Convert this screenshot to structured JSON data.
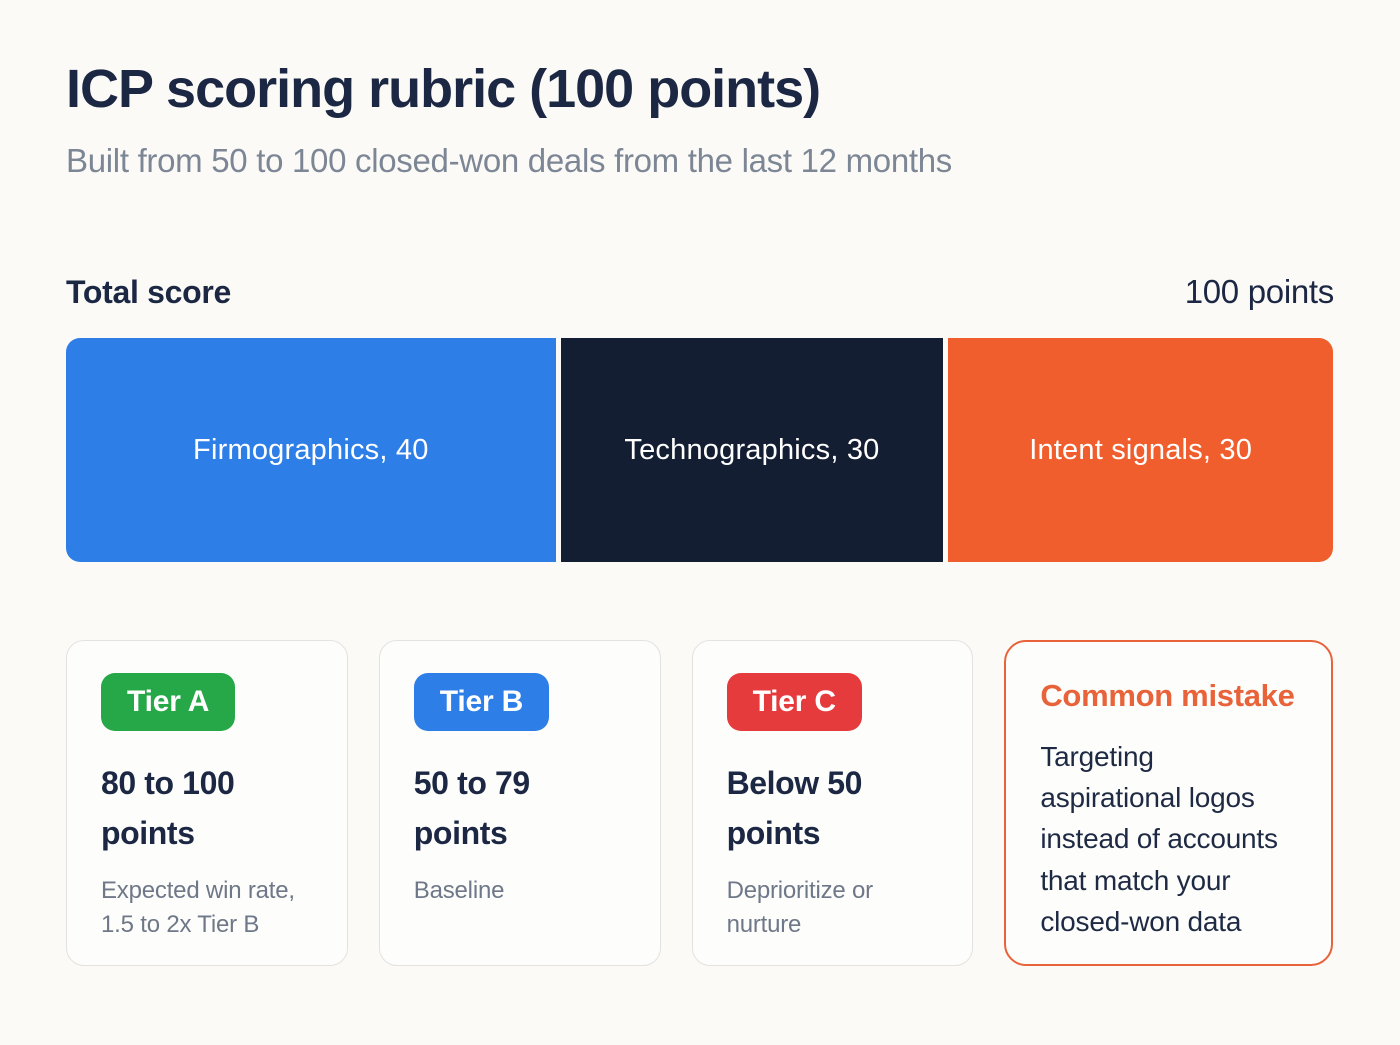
{
  "header": {
    "title": "ICP scoring rubric (100 points)",
    "subtitle": "Built from 50 to 100 closed-won deals from the last 12 months"
  },
  "score": {
    "label": "Total score",
    "value": "100 points"
  },
  "bar": {
    "segments": [
      {
        "label": "Firmographics, 40",
        "points": 40,
        "color": "#2e7ee8"
      },
      {
        "label": "Technographics, 30",
        "points": 30,
        "color": "#141e32"
      },
      {
        "label": "Intent signals, 30",
        "points": 30,
        "color": "#f05e2d"
      }
    ]
  },
  "tiers": [
    {
      "badge": "Tier A",
      "badge_color": "#26a748",
      "range": "80 to 100 points",
      "note": "Expected win rate, 1.5 to 2x Tier B"
    },
    {
      "badge": "Tier B",
      "badge_color": "#2e7ee8",
      "range": "50 to 79 points",
      "note": "Baseline"
    },
    {
      "badge": "Tier C",
      "badge_color": "#e53b3d",
      "range": "Below 50 points",
      "note": "Deprioritize or nurture"
    }
  ],
  "mistake": {
    "title": "Common mistake",
    "body": "Targeting aspirational logos instead of accounts that match your closed-won data",
    "accent_color": "#e8623a"
  },
  "chart_data": {
    "type": "bar",
    "subtype": "stacked-horizontal",
    "title": "ICP scoring rubric (100 points)",
    "subtitle": "Built from 50 to 100 closed-won deals from the last 12 months",
    "total_label": "Total score",
    "total_value": 100,
    "unit": "points",
    "categories": [
      "Firmographics",
      "Technographics",
      "Intent signals"
    ],
    "values": [
      40,
      30,
      30
    ],
    "colors": [
      "#2e7ee8",
      "#141e32",
      "#f05e2d"
    ],
    "xlim": [
      0,
      100
    ],
    "legend": "none",
    "grid": false,
    "annotations": [
      {
        "tier": "Tier A",
        "range": "80 to 100 points",
        "note": "Expected win rate, 1.5 to 2x Tier B"
      },
      {
        "tier": "Tier B",
        "range": "50 to 79 points",
        "note": "Baseline"
      },
      {
        "tier": "Tier C",
        "range": "Below 50 points",
        "note": "Deprioritize or nurture"
      },
      {
        "tier": "Common mistake",
        "note": "Targeting aspirational logos instead of accounts that match your closed-won data"
      }
    ]
  }
}
